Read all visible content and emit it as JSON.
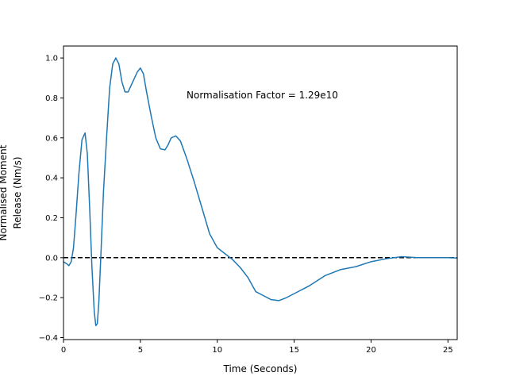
{
  "chart_data": {
    "type": "line",
    "title": "",
    "xlabel": "Time (Seconds)",
    "ylabel_lines": [
      "Normalised Moment",
      "Release (Nm/s)"
    ],
    "annotation": "Normalisation Factor = 1.29e10",
    "xlim": [
      0,
      25.6
    ],
    "ylim": [
      -0.41,
      1.06
    ],
    "xticks": [
      0,
      5,
      10,
      15,
      20,
      25
    ],
    "yticks": [
      -0.4,
      -0.2,
      0.0,
      0.2,
      0.4,
      0.6,
      0.8,
      1.0
    ],
    "xtick_labels": [
      "0",
      "5",
      "10",
      "15",
      "20",
      "25"
    ],
    "ytick_labels": [
      "−0.4",
      "−0.2",
      "0.0",
      "0.2",
      "0.4",
      "0.6",
      "0.8",
      "1.0"
    ],
    "grid": false,
    "reference_line": {
      "y": 0.0,
      "style": "dashed",
      "color": "#000000"
    },
    "series": [
      {
        "color": "#1f77b4",
        "x": [
          0,
          0.2,
          0.35,
          0.5,
          0.65,
          0.8,
          1.0,
          1.2,
          1.4,
          1.55,
          1.7,
          1.85,
          2.0,
          2.1,
          2.2,
          2.3,
          2.45,
          2.6,
          2.8,
          3.0,
          3.2,
          3.4,
          3.6,
          3.8,
          4.0,
          4.2,
          4.5,
          4.8,
          5.0,
          5.2,
          5.4,
          5.7,
          6.0,
          6.3,
          6.6,
          6.8,
          7.0,
          7.3,
          7.6,
          8.0,
          8.5,
          9.0,
          9.5,
          10.0,
          10.5,
          11.0,
          11.5,
          12.0,
          12.5,
          13.0,
          13.5,
          14.0,
          14.5,
          15.0,
          16.0,
          17.0,
          18.0,
          19.0,
          20.0,
          21.0,
          22.0,
          23.0,
          24.0,
          25.0,
          25.6
        ],
        "y": [
          -0.02,
          -0.03,
          -0.04,
          -0.02,
          0.05,
          0.2,
          0.42,
          0.59,
          0.625,
          0.52,
          0.25,
          -0.05,
          -0.27,
          -0.34,
          -0.33,
          -0.22,
          0.05,
          0.33,
          0.6,
          0.85,
          0.97,
          1.0,
          0.97,
          0.88,
          0.83,
          0.83,
          0.88,
          0.93,
          0.95,
          0.92,
          0.83,
          0.71,
          0.6,
          0.545,
          0.54,
          0.565,
          0.6,
          0.61,
          0.585,
          0.5,
          0.38,
          0.25,
          0.12,
          0.05,
          0.02,
          -0.01,
          -0.05,
          -0.1,
          -0.17,
          -0.19,
          -0.21,
          -0.215,
          -0.2,
          -0.18,
          -0.14,
          -0.09,
          -0.06,
          -0.045,
          -0.02,
          -0.005,
          0.005,
          0.0,
          0.0,
          0.0,
          -0.002
        ]
      }
    ]
  }
}
